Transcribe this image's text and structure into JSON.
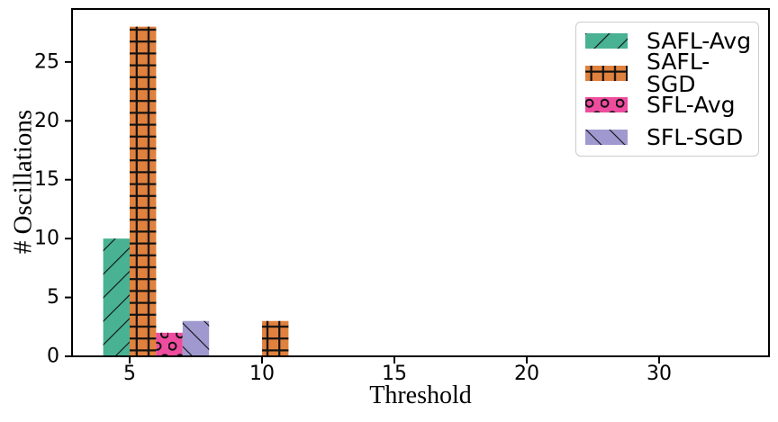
{
  "chart_data": {
    "type": "bar",
    "title": "",
    "xlabel": "Threshold",
    "ylabel": "# Oscillations",
    "x_tick_labels": [
      "5",
      "10",
      "15",
      "20",
      "30"
    ],
    "y_ticks": [
      0,
      5,
      10,
      15,
      20,
      25
    ],
    "y_tick_labels": [
      "0",
      "5",
      "10",
      "15",
      "20",
      "25"
    ],
    "ylim": [
      0,
      29.5
    ],
    "x_axis_style": "categorical-evenly-spaced-groups",
    "grid": false,
    "bar_width_units": 1,
    "hatch_color": "#111111",
    "axis_color": "#000000",
    "series": [
      {
        "name": "SAFL-Avg",
        "color": "#48b293",
        "hatch": "/",
        "offset": -1,
        "values": [
          10,
          null,
          null,
          null,
          null
        ]
      },
      {
        "name": "SAFL-SGD",
        "color": "#e0813e",
        "hatch": "+",
        "offset": 0,
        "values": [
          28,
          3,
          null,
          null,
          null
        ]
      },
      {
        "name": "SFL-Avg",
        "color": "#ee4c9e",
        "hatch": "o",
        "offset": 1,
        "values": [
          2,
          null,
          null,
          null,
          null
        ]
      },
      {
        "name": "SFL-SGD",
        "color": "#a099cf",
        "hatch": "\\",
        "offset": 2,
        "values": [
          3,
          null,
          null,
          null,
          null
        ]
      }
    ],
    "legend": {
      "location": "upper right",
      "entries": [
        "SAFL-Avg",
        "SAFL-SGD",
        "SFL-Avg",
        "SFL-SGD"
      ]
    }
  }
}
